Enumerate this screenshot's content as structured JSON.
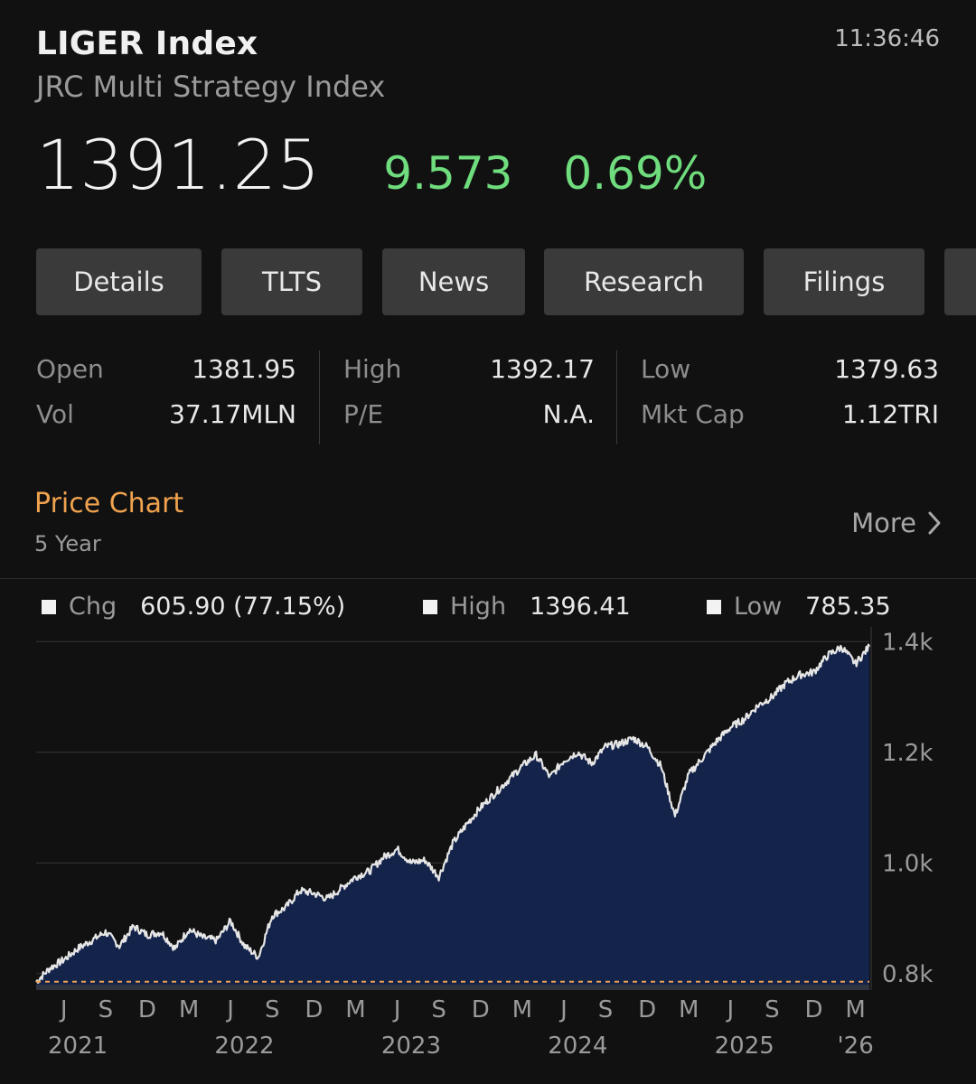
{
  "header": {
    "title": "LIGER Index",
    "subtitle": "JRC Multi Strategy Index",
    "time": "11:36:46",
    "price": "1391.25",
    "change": "9.573",
    "change_pct": "0.69%"
  },
  "tabs": [
    {
      "label": "Details"
    },
    {
      "label": "TLTS"
    },
    {
      "label": "News"
    },
    {
      "label": "Research"
    },
    {
      "label": "Filings"
    }
  ],
  "stats": {
    "open": {
      "label": "Open",
      "value": "1381.95"
    },
    "vol": {
      "label": "Vol",
      "value": "37.17MLN"
    },
    "high": {
      "label": "High",
      "value": "1392.17"
    },
    "pe": {
      "label": "P/E",
      "value": "N.A."
    },
    "low": {
      "label": "Low",
      "value": "1379.63"
    },
    "mktcap": {
      "label": "Mkt Cap",
      "value": "1.12TRI"
    }
  },
  "section": {
    "title": "Price Chart",
    "subtitle": "5 Year",
    "more_label": "More",
    "more_icon": "chevron-right-icon"
  },
  "legend": {
    "chg_label": "Chg",
    "chg_value": "605.90 (77.15%)",
    "high_label": "High",
    "high_value": "1396.41",
    "low_label": "Low",
    "low_value": "785.35"
  },
  "colors": {
    "background": "#111111",
    "positive": "#6fdc7d",
    "accent": "#f0a24e",
    "area_fill": "#13234a",
    "line": "#e6e6e6",
    "low_marker": "#f0a24e"
  },
  "chart_data": {
    "type": "area",
    "title": "",
    "xlabel": "",
    "ylabel": "",
    "ylim": [
      780,
      1420
    ],
    "xlim": [
      "2021-04",
      "2026-04"
    ],
    "y_ticks": [
      {
        "value": 800,
        "label": "0.8k"
      },
      {
        "value": 1000,
        "label": "1.0k"
      },
      {
        "value": 1200,
        "label": "1.2k"
      },
      {
        "value": 1400,
        "label": "1.4k"
      }
    ],
    "x_ticks": [
      {
        "date": "2021-06",
        "label": "J"
      },
      {
        "date": "2021-09",
        "label": "S"
      },
      {
        "date": "2021-12",
        "label": "D"
      },
      {
        "date": "2022-03",
        "label": "M"
      },
      {
        "date": "2022-06",
        "label": "J"
      },
      {
        "date": "2022-09",
        "label": "S"
      },
      {
        "date": "2022-12",
        "label": "D"
      },
      {
        "date": "2023-03",
        "label": "M"
      },
      {
        "date": "2023-06",
        "label": "J"
      },
      {
        "date": "2023-09",
        "label": "S"
      },
      {
        "date": "2023-12",
        "label": "D"
      },
      {
        "date": "2024-03",
        "label": "M"
      },
      {
        "date": "2024-06",
        "label": "J"
      },
      {
        "date": "2024-09",
        "label": "S"
      },
      {
        "date": "2024-12",
        "label": "D"
      },
      {
        "date": "2025-03",
        "label": "M"
      },
      {
        "date": "2025-06",
        "label": "J"
      },
      {
        "date": "2025-09",
        "label": "S"
      },
      {
        "date": "2025-12",
        "label": "D"
      },
      {
        "date": "2026-03",
        "label": "M"
      }
    ],
    "year_labels": [
      {
        "date": "2021-07",
        "label": "2021"
      },
      {
        "date": "2022-07",
        "label": "2022"
      },
      {
        "date": "2023-07",
        "label": "2023"
      },
      {
        "date": "2024-07",
        "label": "2024"
      },
      {
        "date": "2025-07",
        "label": "2025"
      },
      {
        "date": "2026-03",
        "label": "'26"
      }
    ],
    "low_line": 785.35,
    "grid": true,
    "series": [
      {
        "x": [
          "2021-04",
          "2021-05",
          "2021-06",
          "2021-07",
          "2021-08",
          "2021-09",
          "2021-10",
          "2021-11",
          "2021-12",
          "2022-01",
          "2022-02",
          "2022-03",
          "2022-04",
          "2022-05",
          "2022-06",
          "2022-07",
          "2022-08",
          "2022-09",
          "2022-10",
          "2022-11",
          "2022-12",
          "2023-01",
          "2023-02",
          "2023-03",
          "2023-04",
          "2023-05",
          "2023-06",
          "2023-07",
          "2023-08",
          "2023-09",
          "2023-10",
          "2023-11",
          "2023-12",
          "2024-01",
          "2024-02",
          "2024-03",
          "2024-04",
          "2024-05",
          "2024-06",
          "2024-07",
          "2024-08",
          "2024-09",
          "2024-10",
          "2024-11",
          "2024-12",
          "2025-01",
          "2025-02",
          "2025-03",
          "2025-04",
          "2025-05",
          "2025-06",
          "2025-07",
          "2025-08",
          "2025-09",
          "2025-10",
          "2025-11",
          "2025-12",
          "2026-01",
          "2026-02",
          "2026-03",
          "2026-04"
        ],
        "values": [
          785,
          810,
          825,
          845,
          860,
          875,
          850,
          885,
          870,
          875,
          845,
          880,
          865,
          860,
          895,
          850,
          830,
          905,
          920,
          950,
          945,
          935,
          955,
          975,
          985,
          1010,
          1025,
          1000,
          1005,
          975,
          1035,
          1070,
          1100,
          1125,
          1150,
          1175,
          1195,
          1155,
          1185,
          1200,
          1180,
          1210,
          1215,
          1225,
          1210,
          1175,
          1085,
          1160,
          1190,
          1220,
          1245,
          1260,
          1285,
          1300,
          1325,
          1340,
          1345,
          1375,
          1390,
          1360,
          1391
        ]
      }
    ]
  }
}
